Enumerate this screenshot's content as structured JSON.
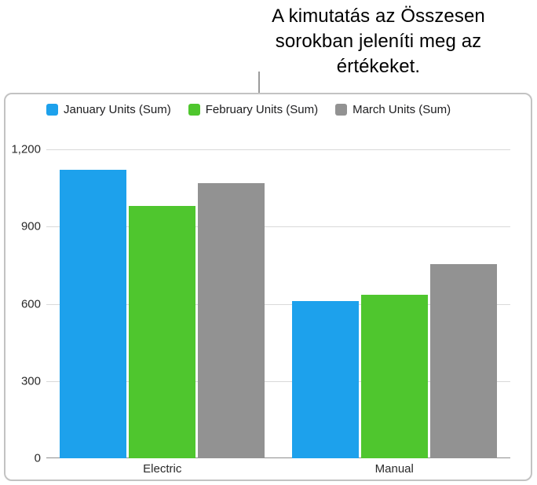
{
  "callout": {
    "lines": [
      "A kimutatás az Összesen",
      "sorokban jeleníti meg az",
      "értékeket."
    ]
  },
  "chart_data": {
    "type": "bar",
    "title": "",
    "xlabel": "",
    "ylabel": "",
    "categories": [
      "Electric",
      "Manual"
    ],
    "series": [
      {
        "name": "January Units (Sum)",
        "color": "#1da1ec",
        "values": [
          1120,
          610
        ]
      },
      {
        "name": "February Units (Sum)",
        "color": "#4fc62e",
        "values": [
          980,
          635
        ]
      },
      {
        "name": "March Units (Sum)",
        "color": "#929292",
        "values": [
          1070,
          755
        ]
      }
    ],
    "ylim": [
      0,
      1200
    ],
    "yticks": [
      0,
      300,
      600,
      900,
      1200
    ],
    "ytick_labels": [
      "0",
      "300",
      "600",
      "900",
      "1,200"
    ],
    "grid": true,
    "legend_position": "top-left",
    "axis_color": "#8f8f8f",
    "gridline_color": "#d9d9d9"
  }
}
